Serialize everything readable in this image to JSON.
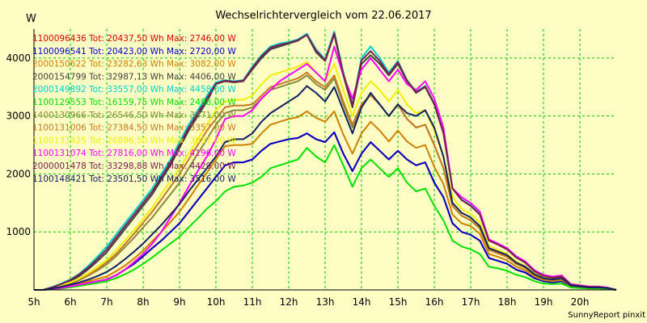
{
  "chart_data": {
    "type": "line",
    "title": "Wechselrichtervergleich vom 22.06.2017",
    "ylabel": "W",
    "credit": "SunnyReport pinxit",
    "background": "#fdfdc4",
    "grid": true,
    "legend_position": "top-left",
    "xlim": [
      5,
      21
    ],
    "ylim": [
      0,
      4500
    ],
    "x_ticks": [
      5,
      6,
      7,
      8,
      9,
      10,
      11,
      12,
      13,
      14,
      15,
      16,
      17,
      18,
      19,
      20
    ],
    "x_tick_labels": [
      "5h",
      "6h",
      "7h",
      "8h",
      "9h",
      "10h",
      "11h",
      "12h",
      "13h",
      "14h",
      "15h",
      "16h",
      "17h",
      "18h",
      "19h",
      "20h"
    ],
    "y_ticks": [
      1000,
      2000,
      3000,
      4000
    ],
    "y_tick_labels": [
      "1000",
      "2000",
      "3000",
      "4000"
    ],
    "x": [
      5,
      5.25,
      5.5,
      5.75,
      6,
      6.25,
      6.5,
      6.75,
      7,
      7.25,
      7.5,
      7.75,
      8,
      8.25,
      8.5,
      8.75,
      9,
      9.25,
      9.5,
      9.75,
      10,
      10.25,
      10.5,
      10.75,
      11,
      11.25,
      11.5,
      11.75,
      12,
      12.25,
      12.5,
      12.75,
      13,
      13.25,
      13.5,
      13.75,
      14,
      14.25,
      14.5,
      14.75,
      15,
      15.25,
      15.5,
      15.75,
      16,
      16.25,
      16.5,
      16.75,
      17,
      17.25,
      17.5,
      17.75,
      18,
      18.25,
      18.5,
      18.75,
      19,
      19.25,
      19.5,
      19.75,
      20,
      20.25,
      20.5,
      20.75,
      21
    ],
    "series": [
      {
        "name": "1100096436 Tot: 20437,50 Wh Max: 2746,00 W",
        "color": "#e00000",
        "values": [
          0,
          0,
          15,
          35,
          60,
          90,
          120,
          150,
          180,
          250,
          350,
          450,
          580,
          720,
          850,
          1000,
          1150,
          1350,
          1550,
          1750,
          1950,
          2150,
          2200,
          2200,
          2250,
          2400,
          2520,
          2560,
          2600,
          2620,
          2700,
          2600,
          2550,
          2720,
          2350,
          2050,
          2350,
          2550,
          2400,
          2250,
          2400,
          2250,
          2150,
          2200,
          1850,
          1600,
          1150,
          1000,
          950,
          850,
          550,
          500,
          450,
          350,
          300,
          200,
          150,
          130,
          150,
          50,
          40,
          30,
          30,
          20,
          0
        ]
      },
      {
        "name": "1100096541 Tot: 20423,00 Wh Max: 2720,00 W",
        "color": "#0000cc",
        "values": [
          0,
          0,
          15,
          35,
          60,
          90,
          120,
          150,
          180,
          250,
          350,
          450,
          580,
          720,
          850,
          1000,
          1150,
          1350,
          1550,
          1750,
          1950,
          2150,
          2200,
          2200,
          2250,
          2400,
          2520,
          2560,
          2600,
          2620,
          2700,
          2600,
          2550,
          2720,
          2350,
          2050,
          2350,
          2550,
          2400,
          2250,
          2400,
          2250,
          2150,
          2200,
          1850,
          1600,
          1150,
          1000,
          950,
          850,
          550,
          500,
          450,
          350,
          300,
          200,
          150,
          130,
          150,
          50,
          40,
          30,
          30,
          20,
          0
        ]
      },
      {
        "name": "2000150622 Tot: 23282,63 Wh Max: 3082,00 W",
        "color": "#d08000",
        "values": [
          0,
          0,
          20,
          45,
          75,
          110,
          150,
          190,
          230,
          320,
          420,
          540,
          680,
          840,
          1000,
          1170,
          1350,
          1570,
          1800,
          2020,
          2250,
          2480,
          2500,
          2500,
          2520,
          2700,
          2850,
          2900,
          2950,
          2980,
          3080,
          2970,
          2900,
          3080,
          2680,
          2350,
          2700,
          2900,
          2750,
          2560,
          2750,
          2560,
          2450,
          2500,
          2120,
          1830,
          1300,
          1150,
          1100,
          970,
          620,
          570,
          510,
          400,
          340,
          230,
          170,
          150,
          170,
          60,
          45,
          35,
          35,
          25,
          0
        ]
      },
      {
        "name": "2000154799 Tot: 32987,13 Wh Max: 4406,00 W",
        "color": "#404040",
        "values": [
          0,
          0,
          40,
          90,
          150,
          240,
          360,
          500,
          650,
          850,
          1050,
          1250,
          1450,
          1650,
          1900,
          2150,
          2450,
          2750,
          3000,
          3250,
          3550,
          3600,
          3580,
          3600,
          3800,
          4000,
          4150,
          4200,
          4250,
          4300,
          4400,
          4100,
          3950,
          4406,
          3700,
          3150,
          3900,
          4050,
          3900,
          3700,
          3900,
          3600,
          3400,
          3500,
          3200,
          2700,
          1750,
          1550,
          1450,
          1300,
          850,
          780,
          700,
          560,
          470,
          320,
          240,
          210,
          230,
          90,
          70,
          50,
          50,
          35,
          0
        ]
      },
      {
        "name": "2000149892 Tot: 33557,00 Wh Max: 4458,00 W",
        "color": "#00d0d0",
        "values": [
          0,
          0,
          50,
          110,
          180,
          280,
          420,
          580,
          750,
          950,
          1150,
          1350,
          1550,
          1750,
          2000,
          2250,
          2550,
          2850,
          3100,
          3350,
          3580,
          3620,
          3600,
          3620,
          3850,
          4050,
          4200,
          4250,
          4280,
          4320,
          4420,
          4150,
          3980,
          4458,
          3750,
          3200,
          4000,
          4200,
          4000,
          3750,
          3950,
          3620,
          3420,
          3520,
          3220,
          2720,
          1760,
          1560,
          1460,
          1310,
          860,
          790,
          710,
          570,
          480,
          330,
          250,
          220,
          240,
          95,
          75,
          55,
          55,
          35,
          0
        ]
      },
      {
        "name": "1100129553 Tot: 16159,75 Wh Max: 2498,00 W",
        "color": "#00e000",
        "values": [
          0,
          0,
          10,
          25,
          45,
          70,
          95,
          120,
          150,
          200,
          270,
          350,
          450,
          560,
          680,
          800,
          920,
          1080,
          1230,
          1400,
          1530,
          1700,
          1780,
          1800,
          1850,
          1950,
          2100,
          2150,
          2200,
          2250,
          2450,
          2300,
          2200,
          2498,
          2150,
          1780,
          2100,
          2250,
          2100,
          1950,
          2100,
          1850,
          1700,
          1750,
          1450,
          1200,
          850,
          750,
          700,
          620,
          400,
          370,
          330,
          260,
          220,
          150,
          110,
          100,
          110,
          40,
          30,
          25,
          25,
          15,
          0
        ]
      },
      {
        "name": "1400130966 Tot: 26546,50 Wh Max: 3371,00 W",
        "color": "#8a8a3a",
        "values": [
          0,
          0,
          30,
          70,
          110,
          170,
          250,
          340,
          440,
          580,
          740,
          900,
          1080,
          1250,
          1450,
          1650,
          1850,
          2100,
          2350,
          2600,
          2850,
          3050,
          3100,
          3100,
          3150,
          3300,
          3450,
          3500,
          3550,
          3600,
          3700,
          3550,
          3450,
          3650,
          3200,
          2800,
          3150,
          3371,
          3200,
          3000,
          3200,
          2950,
          2800,
          2850,
          2500,
          2100,
          1450,
          1280,
          1200,
          1060,
          690,
          630,
          570,
          450,
          380,
          260,
          190,
          170,
          190,
          70,
          55,
          40,
          40,
          30,
          0
        ]
      },
      {
        "name": "1100131006 Tot: 27384,50 Wh Max: 3357,00 W",
        "color": "#c87820",
        "values": [
          0,
          0,
          30,
          70,
          120,
          180,
          260,
          360,
          480,
          620,
          790,
          970,
          1160,
          1350,
          1560,
          1780,
          2000,
          2250,
          2500,
          2750,
          2950,
          3150,
          3180,
          3180,
          3200,
          3350,
          3500,
          3550,
          3600,
          3650,
          3750,
          3600,
          3500,
          3700,
          3250,
          2850,
          3200,
          3357,
          3200,
          3000,
          3200,
          2950,
          2800,
          2850,
          2500,
          2100,
          1450,
          1280,
          1200,
          1060,
          690,
          630,
          570,
          450,
          380,
          260,
          190,
          170,
          190,
          70,
          55,
          40,
          40,
          30,
          0
        ]
      },
      {
        "name": "1100131425 Tot: 26896,50 Wh Max: 3937,00 W",
        "color": "#f0f000",
        "values": [
          0,
          0,
          35,
          80,
          130,
          200,
          290,
          400,
          520,
          680,
          850,
          1030,
          1220,
          1420,
          1650,
          1880,
          2100,
          2350,
          2600,
          2850,
          3100,
          3250,
          3280,
          3280,
          3350,
          3550,
          3700,
          3750,
          3800,
          3850,
          3937,
          3750,
          3600,
          3900,
          3450,
          3000,
          3400,
          3600,
          3450,
          3250,
          3450,
          3200,
          3050,
          3100,
          2750,
          2300,
          1600,
          1400,
          1310,
          1160,
          760,
          690,
          620,
          490,
          410,
          280,
          210,
          180,
          200,
          80,
          60,
          45,
          45,
          30,
          0
        ]
      },
      {
        "name": "1100131074 Tot: 27816,00 Wh Max: 4196,00 W",
        "color": "#ff00ff",
        "values": [
          0,
          0,
          15,
          35,
          60,
          90,
          120,
          150,
          180,
          250,
          350,
          480,
          620,
          800,
          1000,
          1250,
          1500,
          1780,
          2050,
          2300,
          2600,
          2950,
          3000,
          3000,
          3100,
          3300,
          3450,
          3600,
          3700,
          3800,
          3900,
          3750,
          3600,
          4196,
          3700,
          3300,
          3800,
          4000,
          3800,
          3600,
          3800,
          3550,
          3450,
          3600,
          3300,
          2800,
          1750,
          1600,
          1500,
          1350,
          870,
          800,
          720,
          580,
          490,
          340,
          260,
          230,
          250,
          100,
          80,
          60,
          60,
          40,
          0
        ]
      },
      {
        "name": "2000001478 Tot: 33298,88 Wh Max: 4429,00 W",
        "color": "#7a2050",
        "values": [
          0,
          0,
          45,
          100,
          170,
          270,
          390,
          540,
          700,
          900,
          1100,
          1300,
          1500,
          1700,
          1950,
          2200,
          2500,
          2800,
          3050,
          3300,
          3560,
          3610,
          3590,
          3610,
          3830,
          4030,
          4180,
          4230,
          4260,
          4310,
          4400,
          4130,
          3960,
          4429,
          3730,
          3180,
          3960,
          4120,
          3950,
          3720,
          3930,
          3610,
          3410,
          3510,
          3210,
          2710,
          1750,
          1550,
          1450,
          1300,
          850,
          780,
          700,
          560,
          470,
          320,
          240,
          210,
          230,
          90,
          70,
          50,
          50,
          35,
          0
        ]
      },
      {
        "name": "1100148421 Tot: 23501,50 Wh Max: 3516,00 W",
        "color": "#102060",
        "values": [
          0,
          0,
          25,
          55,
          90,
          130,
          180,
          240,
          310,
          410,
          530,
          660,
          800,
          960,
          1120,
          1300,
          1480,
          1700,
          1900,
          2100,
          2300,
          2550,
          2600,
          2600,
          2700,
          2900,
          3050,
          3150,
          3250,
          3350,
          3516,
          3400,
          3250,
          3500,
          3100,
          2700,
          3150,
          3400,
          3200,
          3000,
          3200,
          3050,
          3000,
          3100,
          2800,
          2300,
          1500,
          1330,
          1250,
          1100,
          720,
          660,
          600,
          470,
          400,
          270,
          200,
          180,
          200,
          75,
          58,
          42,
          42,
          30,
          0
        ]
      }
    ]
  }
}
